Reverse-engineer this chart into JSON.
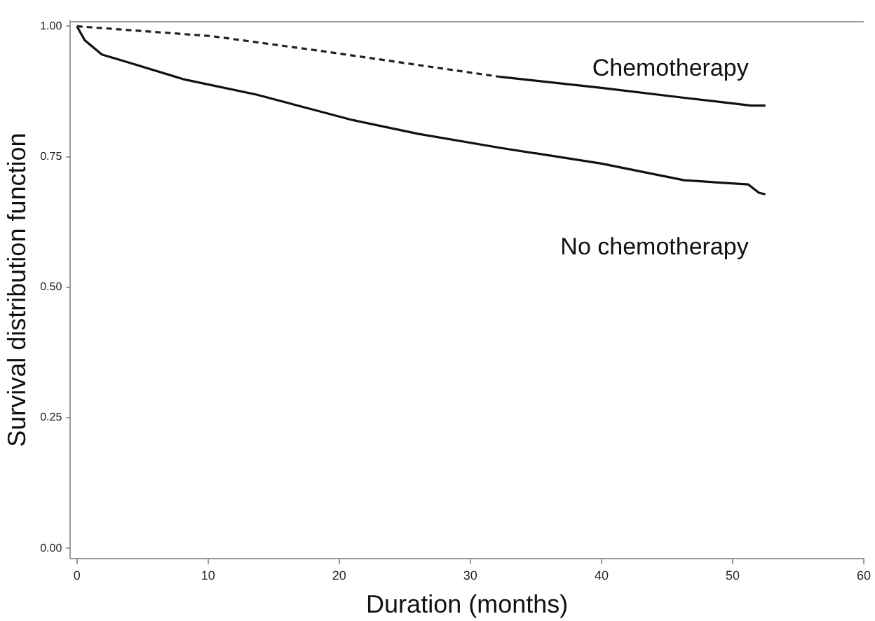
{
  "chart_data": {
    "type": "line",
    "xlabel": "Duration (months)",
    "ylabel": "Survival distribution function",
    "xlim": [
      -0.5,
      60
    ],
    "xticks": [
      0,
      10,
      20,
      30,
      40,
      50,
      60
    ],
    "ylim": [
      -0.02,
      1.01
    ],
    "yticks": [
      {
        "value": 0,
        "label": "0.00"
      },
      {
        "value": 0.25,
        "label": "0.25"
      },
      {
        "value": 0.5,
        "label": "0.50"
      },
      {
        "value": 0.75,
        "label": "0.75"
      },
      {
        "value": 1,
        "label": "1.00"
      }
    ],
    "grid": false,
    "legend": false,
    "marker": "none",
    "series": [
      {
        "color": "#222222",
        "line_style": "dashed",
        "x": [
          0,
          10.3,
          18.8,
          32.3
        ],
        "values": [
          1.0,
          0.981,
          0.952,
          0.903
        ]
      },
      {
        "name": "Chemotherapy",
        "color": "#111111",
        "line_style": "solid",
        "x": [
          32.3,
          40,
          46.3,
          51.4,
          52.5
        ],
        "values": [
          0.903,
          0.882,
          0.863,
          0.848,
          0.848
        ]
      },
      {
        "name": "No chemotherapy",
        "color": "#111111",
        "line_style": "solid",
        "x": [
          0,
          0.6,
          1.9,
          4,
          8.2,
          13.7,
          20.9,
          26,
          32.3,
          40,
          46.3,
          51.2,
          52,
          52.5
        ],
        "values": [
          1.0,
          0.973,
          0.946,
          0.93,
          0.898,
          0.869,
          0.821,
          0.794,
          0.767,
          0.737,
          0.705,
          0.697,
          0.681,
          0.678
        ]
      }
    ]
  }
}
